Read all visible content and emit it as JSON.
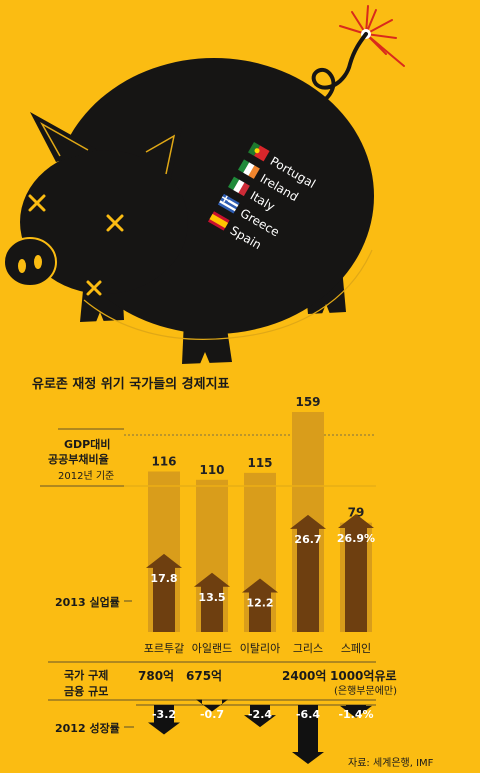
{
  "title": "유로존 재정 위기 국가들의 경제지표",
  "source": "자료: 세계은행, IMF",
  "flag_labels": [
    {
      "name": "Portugal",
      "colors": [
        "#1e7a2e",
        "#d9262b"
      ]
    },
    {
      "name": "Ireland",
      "colors": [
        "#1f8a3a",
        "#ffffff",
        "#f0852d"
      ]
    },
    {
      "name": "Italy",
      "colors": [
        "#1f8a3a",
        "#ffffff",
        "#ce2b37"
      ]
    },
    {
      "name": "Greece",
      "colors": [
        "#2e5db3",
        "#ffffff"
      ]
    },
    {
      "name": "Spain",
      "colors": [
        "#c8102e",
        "#ffc400"
      ]
    }
  ],
  "row_labels": {
    "debt_line1": "GDP대비",
    "debt_line2": "공공부채비율",
    "debt_line3": "2012년 기준",
    "unemp": "2013 실업률",
    "rescue_line1": "국가 구제",
    "rescue_line2": "금융 규모",
    "growth": "2012 성장률"
  },
  "rescue": {
    "values": [
      "780억",
      "675억",
      "",
      "2400억",
      "1000억유로"
    ],
    "note": "(은행부문에만)"
  },
  "colors": {
    "background": "#fbbc12",
    "pig": "#161514",
    "debt_bar": "#d99d1b",
    "unemp_arrow": "#6e3f10",
    "growth_arrow": "#111111"
  },
  "chart_data": {
    "type": "bar",
    "categories": [
      "포르투갈",
      "아일랜드",
      "이탈리아",
      "그리스",
      "스페인"
    ],
    "series": [
      {
        "values": [
          116,
          110,
          115,
          159,
          79
        ],
        "labels": [
          "116",
          "110",
          "115",
          "159",
          "79"
        ]
      },
      {
        "values": [
          17.8,
          13.5,
          12.2,
          26.7,
          26.9
        ],
        "labels": [
          "17.8",
          "13.5",
          "12.2",
          "26.7",
          "26.9%"
        ]
      },
      {
        "values": [
          -3.2,
          -0.7,
          -2.4,
          -6.4,
          -1.4
        ],
        "labels": [
          "-3.2",
          "-0.7",
          "-2.4",
          "-6.4",
          "-1.4%"
        ]
      }
    ],
    "title": "유로존 재정 위기 국가들의 경제지표",
    "xlabel": "",
    "ylabel": ""
  }
}
